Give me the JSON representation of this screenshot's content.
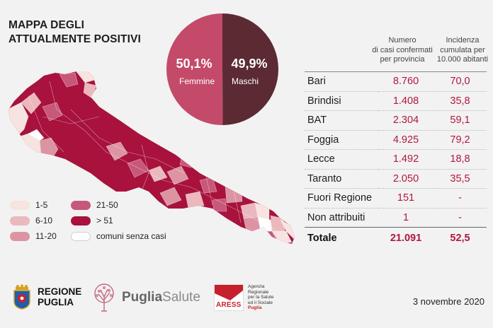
{
  "title": {
    "line1": "MAPPA DEGLI",
    "line2": "ATTUALMENTE POSITIVI"
  },
  "colors": {
    "c1_5": "#f7e3e0",
    "c6_10": "#eab8bd",
    "c11_20": "#dc94a3",
    "c21_50": "#c8587a",
    "c51": "#a8123d",
    "none": "#ffffff",
    "female": "#c44a6a",
    "male": "#5b2a33"
  },
  "legend": [
    {
      "label": "1-5",
      "color_key": "c1_5"
    },
    {
      "label": "6-10",
      "color_key": "c6_10"
    },
    {
      "label": "11-20",
      "color_key": "c11_20"
    },
    {
      "label": "21-50",
      "color_key": "c21_50"
    },
    {
      "label": "> 51",
      "color_key": "c51"
    },
    {
      "label": "comuni senza casi",
      "color_key": "none"
    }
  ],
  "chart_data": [
    {
      "type": "pie",
      "categories": [
        "Femmine",
        "Maschi"
      ],
      "values": [
        50.1,
        49.9
      ],
      "value_labels": [
        "50,1%",
        "49,9%"
      ]
    },
    {
      "type": "table",
      "columns": [
        "",
        "Numero di casi confermati per provincia",
        "Incidenza cumulata per 10.000 abitanti"
      ],
      "column_lines": [
        [
          "Numero",
          "di casi confermati",
          "per provincia"
        ],
        [
          "Incidenza",
          "cumulata per",
          "10.000 abitanti"
        ]
      ],
      "rows": [
        {
          "name": "Bari",
          "cases": "8.760",
          "incidence": "70,0"
        },
        {
          "name": "Brindisi",
          "cases": "1.408",
          "incidence": "35,8"
        },
        {
          "name": "BAT",
          "cases": "2.304",
          "incidence": "59,1"
        },
        {
          "name": "Foggia",
          "cases": "4.925",
          "incidence": "79,2"
        },
        {
          "name": "Lecce",
          "cases": "1.492",
          "incidence": "18,8"
        },
        {
          "name": "Taranto",
          "cases": "2.050",
          "incidence": "35,5"
        },
        {
          "name": "Fuori Regione",
          "cases": "151",
          "incidence": "-"
        },
        {
          "name": "Non attribuiti",
          "cases": "1",
          "incidence": "-"
        }
      ],
      "total": {
        "name": "Totale",
        "cases": "21.091",
        "incidence": "52,5"
      }
    }
  ],
  "footer": {
    "regione_line1": "REGIONE",
    "regione_line2": "PUGLIA",
    "puglia": "Puglia",
    "salute": "Salute",
    "aress_logo": "ARESS",
    "aress_lines": [
      "Agenzia",
      "Regionale",
      "per la Salute",
      "ed il Sociale",
      "Puglia"
    ],
    "date": "3 novembre 2020"
  }
}
